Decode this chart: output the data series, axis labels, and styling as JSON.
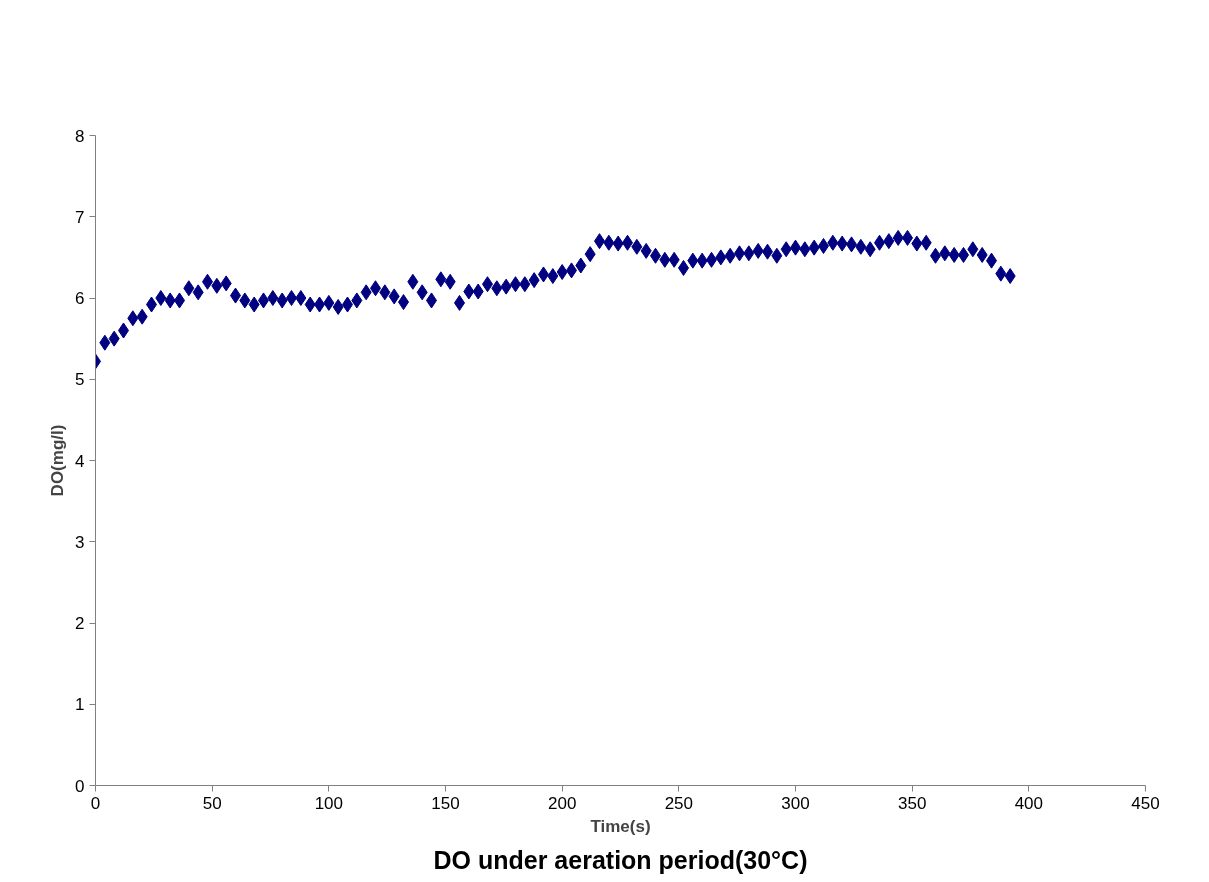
{
  "chart_data": {
    "type": "scatter",
    "title": "DO under aeration period(30°C)",
    "xlabel": "Time(s)",
    "ylabel": "DO(mg/l)",
    "marker": "diamond",
    "grid": false,
    "xlim": [
      0,
      450
    ],
    "xticks": [
      0,
      50,
      100,
      150,
      200,
      250,
      300,
      350,
      400,
      450
    ],
    "ylim": [
      0,
      8
    ],
    "yticks": [
      0,
      1,
      2,
      3,
      4,
      5,
      6,
      7,
      8
    ],
    "x": [
      0,
      4,
      8,
      12,
      16,
      20,
      24,
      28,
      32,
      36,
      40,
      44,
      48,
      52,
      56,
      60,
      64,
      68,
      72,
      76,
      80,
      84,
      88,
      92,
      96,
      100,
      104,
      108,
      112,
      116,
      120,
      124,
      128,
      132,
      136,
      140,
      144,
      148,
      152,
      156,
      160,
      164,
      168,
      172,
      176,
      180,
      184,
      188,
      192,
      196,
      200,
      204,
      208,
      212,
      216,
      220,
      224,
      228,
      232,
      236,
      240,
      244,
      248,
      252,
      256,
      260,
      264,
      268,
      272,
      276,
      280,
      284,
      288,
      292,
      296,
      300,
      304,
      308,
      312,
      316,
      320,
      324,
      328,
      332,
      336,
      340,
      344,
      348,
      352,
      356,
      360,
      364,
      368,
      372,
      376,
      380,
      384,
      388,
      392
    ],
    "series": [
      {
        "color": "#000080",
        "values": [
          5.22,
          5.45,
          5.5,
          5.6,
          5.75,
          5.77,
          5.92,
          6.0,
          5.97,
          5.97,
          6.12,
          6.07,
          6.2,
          6.15,
          6.18,
          6.03,
          5.97,
          5.92,
          5.97,
          6.0,
          5.97,
          6.0,
          6.0,
          5.92,
          5.92,
          5.94,
          5.89,
          5.92,
          5.97,
          6.07,
          6.12,
          6.07,
          6.02,
          5.95,
          6.2,
          6.07,
          5.97,
          6.23,
          6.2,
          5.94,
          6.08,
          6.08,
          6.17,
          6.12,
          6.14,
          6.17,
          6.17,
          6.22,
          6.29,
          6.27,
          6.32,
          6.34,
          6.4,
          6.54,
          6.7,
          6.68,
          6.67,
          6.68,
          6.63,
          6.58,
          6.52,
          6.47,
          6.47,
          6.37,
          6.46,
          6.46,
          6.47,
          6.5,
          6.52,
          6.55,
          6.55,
          6.58,
          6.57,
          6.52,
          6.6,
          6.62,
          6.6,
          6.62,
          6.64,
          6.68,
          6.67,
          6.66,
          6.63,
          6.6,
          6.68,
          6.7,
          6.74,
          6.74,
          6.67,
          6.68,
          6.52,
          6.55,
          6.53,
          6.53,
          6.6,
          6.53,
          6.46,
          6.3,
          6.27
        ]
      }
    ]
  }
}
